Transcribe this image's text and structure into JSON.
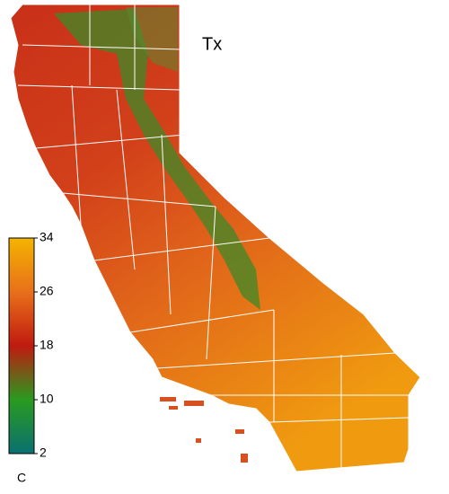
{
  "title": "Tx",
  "colorbar": {
    "label": "C",
    "lim": [
      2,
      34
    ],
    "ticks": [
      34,
      26,
      18,
      10,
      2
    ]
  }
}
